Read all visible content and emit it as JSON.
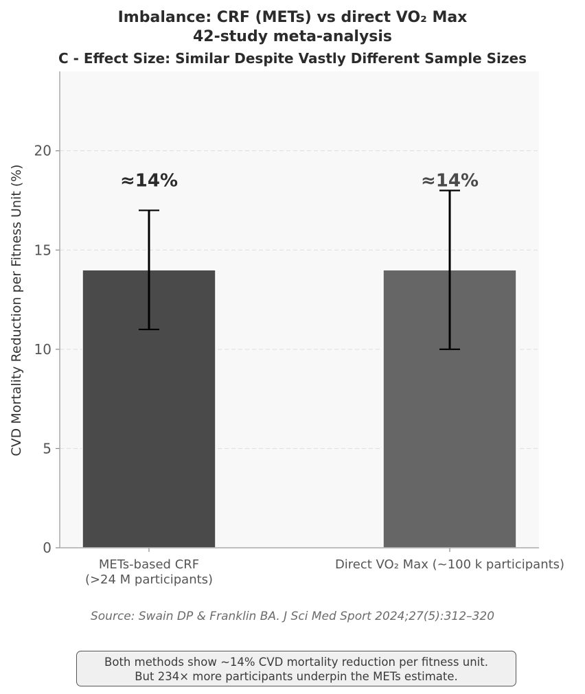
{
  "title_line1": "Imbalance: CRF (METs) vs direct VO₂ Max",
  "title_line2": "42-study meta-analysis",
  "subtitle": "C - Effect Size: Similar Despite Vastly Different Sample Sizes",
  "source": "Source: Swain DP & Franklin BA. J Sci Med Sport 2024;27(5):312–320",
  "note_line1": "Both methods show ~14% CVD mortality reduction per fitness unit.",
  "note_line2": "But 234× more participants underpin the METs estimate.",
  "chart_data": {
    "type": "bar",
    "ylabel": "CVD Mortality Reduction per Fitness Unit (%)",
    "xlabel": "",
    "ylim": [
      0,
      24
    ],
    "yticks": [
      0,
      5,
      10,
      15,
      20
    ],
    "grid": true,
    "categories": [
      [
        "METs-based CRF",
        "(>24 M participants)"
      ],
      [
        "Direct VO₂ Max (~100 k participants)"
      ]
    ],
    "values": [
      14,
      14
    ],
    "error_low": [
      11,
      10
    ],
    "error_high": [
      17,
      18
    ],
    "data_labels": [
      "≈14%",
      "≈14%"
    ],
    "colors": [
      "#4a4a4a",
      "#666666"
    ],
    "label_colors": [
      "#2b2b2b",
      "#4a4a4a"
    ]
  }
}
